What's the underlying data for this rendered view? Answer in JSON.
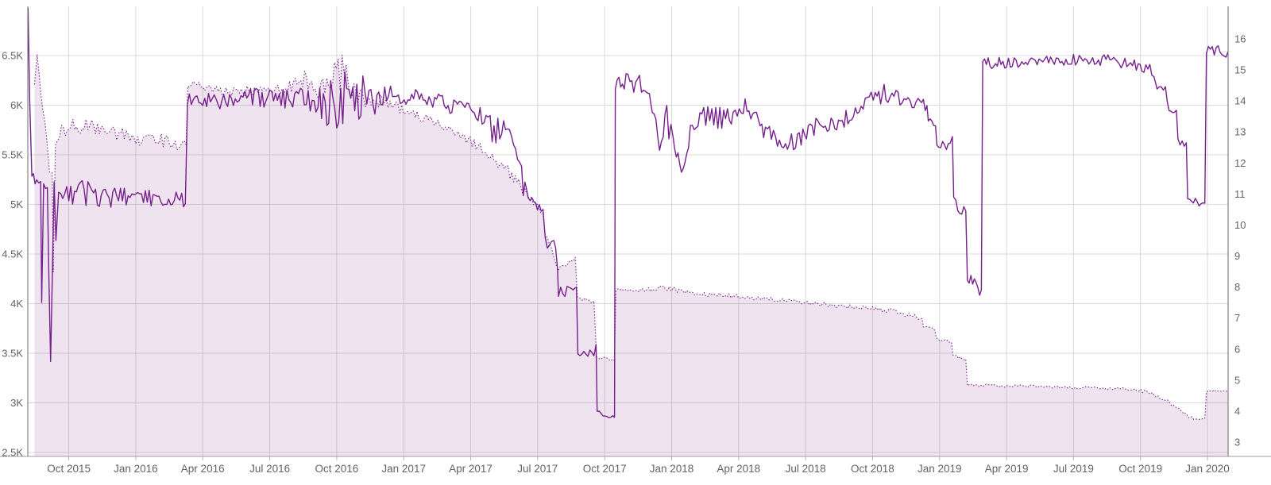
{
  "chart_data": {
    "type": "line",
    "title": "",
    "legend": "none",
    "grid": "on",
    "background_color": "#ffffff",
    "gridline_color": "#d9d9d9",
    "axis_line_color": "#6b6b6b",
    "bottom_axis_line_color": "#9e9e9e",
    "tick_mark_color": "#b5b5b5",
    "label_color": "#636363",
    "x_axis": {
      "domain_years": [
        2015.597,
        2020.077
      ],
      "tick_years": [
        2015.75,
        2016.0,
        2016.25,
        2016.5,
        2016.75,
        2017.0,
        2017.25,
        2017.5,
        2017.75,
        2018.0,
        2018.25,
        2018.5,
        2018.75,
        2019.0,
        2019.25,
        2019.5,
        2019.75,
        2020.0
      ],
      "tick_labels": [
        "Oct 2015",
        "Jan 2016",
        "Apr 2016",
        "Jul 2016",
        "Oct 2016",
        "Jan 2017",
        "Apr 2017",
        "Jul 2017",
        "Oct 2017",
        "Jan 2018",
        "Apr 2018",
        "Jul 2018",
        "Oct 2018",
        "Jan 2019",
        "Apr 2019",
        "Jul 2019",
        "Oct 2019",
        "Jan 2020"
      ]
    },
    "y_axis_left": {
      "side": "left",
      "domain": [
        2460,
        6996
      ],
      "tick_values": [
        2500,
        3000,
        3500,
        4000,
        4500,
        5000,
        5500,
        6000,
        6500
      ],
      "tick_labels": [
        "2.5K",
        "3K",
        "3.5K",
        "4K",
        "4.5K",
        "5K",
        "5.5K",
        "6K",
        "6.5K"
      ]
    },
    "y_axis_right": {
      "side": "right",
      "domain": [
        2.539,
        17.049
      ],
      "tick_values": [
        3,
        4,
        5,
        6,
        7,
        8,
        9,
        10,
        11,
        12,
        13,
        14,
        15,
        16
      ],
      "tick_labels": [
        "3",
        "4",
        "5",
        "6",
        "7",
        "8",
        "9",
        "10",
        "11",
        "12",
        "13",
        "14",
        "15",
        "16"
      ]
    },
    "series": [
      {
        "name": "dotted-area-series",
        "axis": "left",
        "line_style": "dotted",
        "fill": true,
        "color": "#75208c",
        "fill_color": "rgba(140,35,140,0.13)",
        "points_format": [
          "decimal_year",
          "value",
          "noise_amplitude"
        ],
        "points": [
          [
            2015.622,
            6200,
            40
          ],
          [
            2015.632,
            6530,
            30
          ],
          [
            2015.645,
            6150,
            60
          ],
          [
            2015.668,
            5700,
            60
          ],
          [
            2015.678,
            5400,
            110
          ],
          [
            2015.688,
            5320,
            100
          ],
          [
            2015.692,
            4320,
            0
          ],
          [
            2015.7,
            5600,
            70
          ],
          [
            2015.73,
            5760,
            90
          ],
          [
            2015.8,
            5800,
            90
          ],
          [
            2015.9,
            5740,
            80
          ],
          [
            2016.0,
            5660,
            70
          ],
          [
            2016.08,
            5660,
            65
          ],
          [
            2016.14,
            5620,
            70
          ],
          [
            2016.188,
            5600,
            55
          ],
          [
            2016.194,
            6220,
            45
          ],
          [
            2016.25,
            6180,
            45
          ],
          [
            2016.33,
            6130,
            55
          ],
          [
            2016.45,
            6140,
            60
          ],
          [
            2016.56,
            6150,
            70
          ],
          [
            2016.63,
            6280,
            120
          ],
          [
            2016.67,
            6150,
            80
          ],
          [
            2016.72,
            6250,
            160
          ],
          [
            2016.77,
            6350,
            220
          ],
          [
            2016.8,
            6150,
            110
          ],
          [
            2016.85,
            6050,
            120
          ],
          [
            2016.92,
            6050,
            60
          ],
          [
            2017.0,
            5940,
            50
          ],
          [
            2017.1,
            5850,
            50
          ],
          [
            2017.19,
            5740,
            50
          ],
          [
            2017.27,
            5600,
            50
          ],
          [
            2017.33,
            5480,
            55
          ],
          [
            2017.39,
            5330,
            60
          ],
          [
            2017.43,
            5200,
            55
          ],
          [
            2017.47,
            5060,
            50
          ],
          [
            2017.52,
            4910,
            40
          ],
          [
            2017.528,
            4700,
            45
          ],
          [
            2017.56,
            4510,
            50
          ],
          [
            2017.576,
            4360,
            25
          ],
          [
            2017.6,
            4390,
            25
          ],
          [
            2017.64,
            4450,
            18
          ],
          [
            2017.648,
            4060,
            22
          ],
          [
            2017.71,
            4020,
            22
          ],
          [
            2017.72,
            3450,
            18
          ],
          [
            2017.787,
            3430,
            18
          ],
          [
            2017.792,
            4140,
            22
          ],
          [
            2017.9,
            4130,
            26
          ],
          [
            2017.97,
            4160,
            26
          ],
          [
            2018.1,
            4100,
            24
          ],
          [
            2018.3,
            4060,
            24
          ],
          [
            2018.5,
            4010,
            22
          ],
          [
            2018.7,
            3960,
            22
          ],
          [
            2018.85,
            3920,
            26
          ],
          [
            2018.9,
            3870,
            28
          ],
          [
            2018.935,
            3850,
            22
          ],
          [
            2018.94,
            3760,
            22
          ],
          [
            2018.982,
            3730,
            20
          ],
          [
            2018.988,
            3640,
            18
          ],
          [
            2019.045,
            3610,
            18
          ],
          [
            2019.05,
            3470,
            18
          ],
          [
            2019.098,
            3440,
            18
          ],
          [
            2019.104,
            3180,
            15
          ],
          [
            2019.3,
            3170,
            15
          ],
          [
            2019.5,
            3150,
            14
          ],
          [
            2019.7,
            3140,
            14
          ],
          [
            2019.78,
            3110,
            16
          ],
          [
            2019.83,
            3040,
            20
          ],
          [
            2019.88,
            2970,
            18
          ],
          [
            2019.905,
            2910,
            14
          ],
          [
            2019.93,
            2860,
            12
          ],
          [
            2019.955,
            2840,
            12
          ],
          [
            2019.99,
            2845,
            10
          ],
          [
            2019.996,
            3120,
            12
          ],
          [
            2020.077,
            3120,
            12
          ]
        ]
      },
      {
        "name": "solid-line-series",
        "axis": "right",
        "line_style": "solid",
        "fill": false,
        "color": "#75208c",
        "points_format": [
          "decimal_year",
          "value",
          "noise_amplitude"
        ],
        "points": [
          [
            2015.598,
            17.0,
            0
          ],
          [
            2015.604,
            14.0,
            0
          ],
          [
            2015.612,
            11.7,
            0.25
          ],
          [
            2015.63,
            11.45,
            0.35
          ],
          [
            2015.645,
            11.4,
            0.2
          ],
          [
            2015.649,
            7.5,
            0
          ],
          [
            2015.656,
            11.5,
            0.2
          ],
          [
            2015.67,
            11.2,
            0.3
          ],
          [
            2015.682,
            5.6,
            0
          ],
          [
            2015.695,
            11.1,
            0.3
          ],
          [
            2015.702,
            9.5,
            0
          ],
          [
            2015.712,
            11.0,
            0.35
          ],
          [
            2015.75,
            11.05,
            0.4
          ],
          [
            2015.85,
            11.0,
            0.42
          ],
          [
            2015.95,
            10.95,
            0.4
          ],
          [
            2016.05,
            10.95,
            0.35
          ],
          [
            2016.13,
            10.9,
            0.32
          ],
          [
            2016.185,
            10.85,
            0.28
          ],
          [
            2016.193,
            14.05,
            0.22
          ],
          [
            2016.3,
            14.0,
            0.3
          ],
          [
            2016.45,
            14.1,
            0.32
          ],
          [
            2016.6,
            14.1,
            0.4
          ],
          [
            2016.68,
            14.05,
            0.55
          ],
          [
            2016.72,
            14.0,
            0.9
          ],
          [
            2016.78,
            14.0,
            1.0
          ],
          [
            2016.84,
            14.05,
            0.85
          ],
          [
            2016.9,
            14.1,
            0.5
          ],
          [
            2016.98,
            14.15,
            0.3
          ],
          [
            2017.08,
            14.05,
            0.28
          ],
          [
            2017.18,
            13.85,
            0.3
          ],
          [
            2017.27,
            13.6,
            0.35
          ],
          [
            2017.33,
            13.15,
            0.5
          ],
          [
            2017.38,
            12.95,
            0.45
          ],
          [
            2017.41,
            12.7,
            0.4
          ],
          [
            2017.44,
            11.4,
            0.55
          ],
          [
            2017.465,
            10.75,
            0.22
          ],
          [
            2017.52,
            10.6,
            0.18
          ],
          [
            2017.528,
            9.6,
            0.25
          ],
          [
            2017.56,
            9.2,
            0.5
          ],
          [
            2017.574,
            8.6,
            0.3
          ],
          [
            2017.578,
            7.8,
            0.22
          ],
          [
            2017.61,
            7.9,
            0.25
          ],
          [
            2017.632,
            8.1,
            0.2
          ],
          [
            2017.645,
            8.0,
            0.15
          ],
          [
            2017.65,
            5.95,
            0.2
          ],
          [
            2017.71,
            5.8,
            0.2
          ],
          [
            2017.718,
            6.15,
            0
          ],
          [
            2017.722,
            3.9,
            0.12
          ],
          [
            2017.78,
            3.82,
            0.12
          ],
          [
            2017.787,
            3.8,
            0
          ],
          [
            2017.79,
            14.5,
            0.28
          ],
          [
            2017.83,
            14.6,
            0.3
          ],
          [
            2017.88,
            14.55,
            0.3
          ],
          [
            2017.917,
            14.25,
            0.28
          ],
          [
            2017.928,
            13.35,
            0.4
          ],
          [
            2017.955,
            12.7,
            0.5
          ],
          [
            2017.982,
            13.4,
            0.55
          ],
          [
            2018.005,
            12.5,
            0.4
          ],
          [
            2018.03,
            11.9,
            0.3
          ],
          [
            2018.05,
            12.1,
            0.3
          ],
          [
            2018.07,
            13.1,
            0.3
          ],
          [
            2018.12,
            13.5,
            0.32
          ],
          [
            2018.18,
            13.45,
            0.38
          ],
          [
            2018.23,
            13.6,
            0.35
          ],
          [
            2018.26,
            13.9,
            0.32
          ],
          [
            2018.31,
            13.5,
            0.3
          ],
          [
            2018.35,
            13.0,
            0.32
          ],
          [
            2018.41,
            12.6,
            0.32
          ],
          [
            2018.47,
            12.65,
            0.32
          ],
          [
            2018.51,
            13.1,
            0.3
          ],
          [
            2018.56,
            13.3,
            0.35
          ],
          [
            2018.63,
            13.4,
            0.32
          ],
          [
            2018.7,
            13.7,
            0.32
          ],
          [
            2018.76,
            14.15,
            0.3
          ],
          [
            2018.8,
            14.25,
            0.32
          ],
          [
            2018.86,
            14.1,
            0.28
          ],
          [
            2018.92,
            13.9,
            0.28
          ],
          [
            2018.953,
            13.85,
            0.18
          ],
          [
            2018.958,
            13.3,
            0.18
          ],
          [
            2018.985,
            13.2,
            0.18
          ],
          [
            2018.99,
            12.55,
            0.2
          ],
          [
            2019.04,
            12.5,
            0.2
          ],
          [
            2019.048,
            12.85,
            0
          ],
          [
            2019.053,
            10.75,
            0.25
          ],
          [
            2019.098,
            10.45,
            0.25
          ],
          [
            2019.104,
            8.4,
            0.28
          ],
          [
            2019.13,
            8.0,
            0.28
          ],
          [
            2019.156,
            7.9,
            0.22
          ],
          [
            2019.161,
            15.2,
            0.2
          ],
          [
            2019.25,
            15.25,
            0.2
          ],
          [
            2019.4,
            15.3,
            0.2
          ],
          [
            2019.55,
            15.35,
            0.2
          ],
          [
            2019.65,
            15.3,
            0.18
          ],
          [
            2019.72,
            15.2,
            0.22
          ],
          [
            2019.77,
            15.05,
            0.22
          ],
          [
            2019.8,
            14.95,
            0.18
          ],
          [
            2019.812,
            14.5,
            0.22
          ],
          [
            2019.843,
            14.4,
            0.18
          ],
          [
            2019.85,
            13.85,
            0.18
          ],
          [
            2019.884,
            13.7,
            0.2
          ],
          [
            2019.89,
            12.75,
            0.18
          ],
          [
            2019.921,
            12.65,
            0.16
          ],
          [
            2019.926,
            10.8,
            0.14
          ],
          [
            2019.99,
            10.7,
            0.13
          ],
          [
            2019.996,
            15.65,
            0.18
          ],
          [
            2020.04,
            15.65,
            0.2
          ],
          [
            2020.077,
            15.6,
            0.2
          ]
        ]
      }
    ]
  }
}
